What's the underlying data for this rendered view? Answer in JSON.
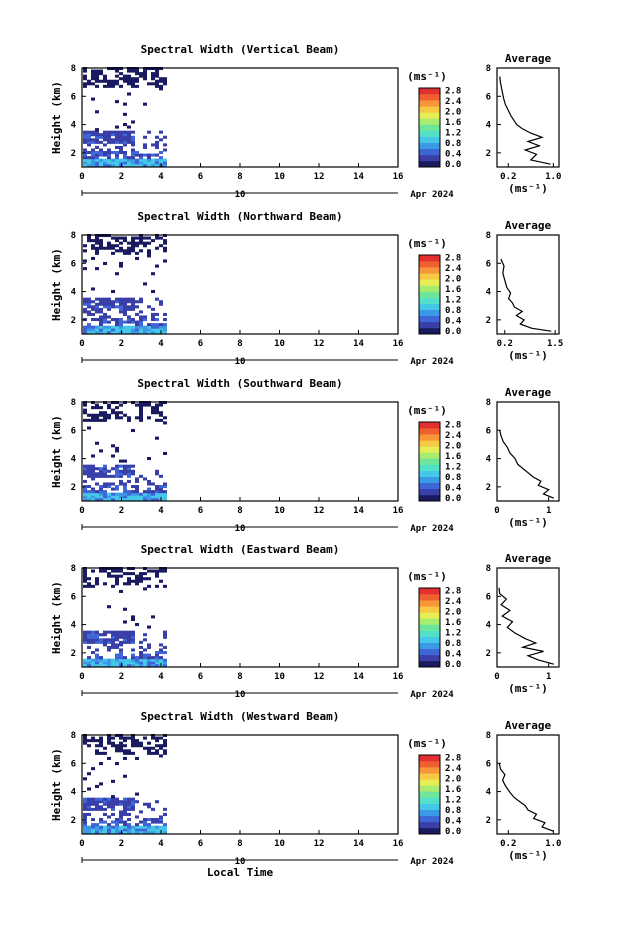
{
  "figure": {
    "xlabel_bottom": "Local Time",
    "date_left": "10",
    "date_right": "Apr 2024",
    "colorbar_unit": "(ms⁻¹)",
    "avg_title": "Average",
    "ylabel": "Height (km)"
  },
  "colorscale": [
    "#1a1a5e",
    "#3a3fa8",
    "#3f66d6",
    "#3a9ae6",
    "#45c7e8",
    "#52e0c8",
    "#6ee69a",
    "#a8ec70",
    "#e7ee55",
    "#f7c844",
    "#f79638",
    "#f0602f",
    "#e23030"
  ],
  "chart_data": [
    {
      "type": "heatmap",
      "title": "Spectral Width (Vertical Beam)",
      "xlabel": "",
      "ylabel": "Height (km)",
      "xlim": [
        0,
        16
      ],
      "ylim": [
        1,
        8
      ],
      "xticks": [
        "0",
        "2",
        "4",
        "6",
        "8",
        "10",
        "12",
        "14",
        "16"
      ],
      "yticks": [
        "2",
        "4",
        "6",
        "8"
      ],
      "colorbar": {
        "range": [
          0,
          2.8
        ],
        "ticks": [
          "0.0",
          "0.4",
          "0.8",
          "1.2",
          "1.6",
          "2.0",
          "2.4",
          "2.8"
        ]
      },
      "data_extent_hours": [
        0,
        4.3
      ],
      "average": {
        "title": "Average",
        "xticks": [
          "0.2",
          "1.0"
        ],
        "xlim": [
          0,
          1.1
        ],
        "ylim": [
          1,
          8
        ],
        "yticks": [
          "2",
          "4",
          "6",
          "8"
        ],
        "profile": [
          [
            0.95,
            1.2
          ],
          [
            0.6,
            1.5
          ],
          [
            0.7,
            1.9
          ],
          [
            0.5,
            2.2
          ],
          [
            0.75,
            2.5
          ],
          [
            0.55,
            2.8
          ],
          [
            0.8,
            3.1
          ],
          [
            0.6,
            3.4
          ],
          [
            0.45,
            3.7
          ],
          [
            0.35,
            4.0
          ],
          [
            0.3,
            4.3
          ],
          [
            0.25,
            4.6
          ],
          [
            0.2,
            5.0
          ],
          [
            0.15,
            5.4
          ],
          [
            0.12,
            5.8
          ],
          [
            0.1,
            6.2
          ],
          [
            0.08,
            6.6
          ],
          [
            0.06,
            7.0
          ],
          [
            0.05,
            7.4
          ]
        ]
      }
    },
    {
      "type": "heatmap",
      "title": "Spectral Width (Northward Beam)",
      "xlabel": "",
      "ylabel": "Height (km)",
      "xlim": [
        0,
        16
      ],
      "ylim": [
        1,
        8
      ],
      "xticks": [
        "0",
        "2",
        "4",
        "6",
        "8",
        "10",
        "12",
        "14",
        "16"
      ],
      "yticks": [
        "2",
        "4",
        "6",
        "8"
      ],
      "colorbar": {
        "range": [
          0,
          2.8
        ],
        "ticks": [
          "0.0",
          "0.4",
          "0.8",
          "1.2",
          "1.6",
          "2.0",
          "2.4",
          "2.8"
        ]
      },
      "data_extent_hours": [
        0,
        4.3
      ],
      "average": {
        "title": "Average",
        "xticks": [
          "0.2",
          "1.5"
        ],
        "xlim": [
          0,
          1.6
        ],
        "ylim": [
          1,
          8
        ],
        "yticks": [
          "2",
          "4",
          "6",
          "8"
        ],
        "profile": [
          [
            1.4,
            1.2
          ],
          [
            0.9,
            1.4
          ],
          [
            0.6,
            1.7
          ],
          [
            0.7,
            2.0
          ],
          [
            0.5,
            2.3
          ],
          [
            0.65,
            2.6
          ],
          [
            0.45,
            2.9
          ],
          [
            0.4,
            3.2
          ],
          [
            0.3,
            3.5
          ],
          [
            0.35,
            3.9
          ],
          [
            0.25,
            4.3
          ],
          [
            0.2,
            4.8
          ],
          [
            0.15,
            5.3
          ],
          [
            0.18,
            5.8
          ],
          [
            0.1,
            6.3
          ]
        ]
      }
    },
    {
      "type": "heatmap",
      "title": "Spectral Width (Southward Beam)",
      "xlabel": "",
      "ylabel": "Height (km)",
      "xlim": [
        0,
        16
      ],
      "ylim": [
        1,
        8
      ],
      "xticks": [
        "0",
        "2",
        "4",
        "6",
        "8",
        "10",
        "12",
        "14",
        "16"
      ],
      "yticks": [
        "2",
        "4",
        "6",
        "8"
      ],
      "colorbar": {
        "range": [
          0,
          2.8
        ],
        "ticks": [
          "0.0",
          "0.4",
          "0.8",
          "1.2",
          "1.6",
          "2.0",
          "2.4",
          "2.8"
        ]
      },
      "data_extent_hours": [
        0,
        4.3
      ],
      "average": {
        "title": "Average",
        "xticks": [
          "0",
          "1"
        ],
        "xlim": [
          0,
          1.2
        ],
        "ylim": [
          1,
          8
        ],
        "yticks": [
          "2",
          "4",
          "6",
          "8"
        ],
        "profile": [
          [
            1.1,
            1.2
          ],
          [
            0.9,
            1.5
          ],
          [
            1.0,
            1.8
          ],
          [
            0.8,
            2.1
          ],
          [
            0.85,
            2.4
          ],
          [
            0.7,
            2.7
          ],
          [
            0.6,
            3.0
          ],
          [
            0.5,
            3.3
          ],
          [
            0.4,
            3.6
          ],
          [
            0.35,
            4.0
          ],
          [
            0.25,
            4.4
          ],
          [
            0.2,
            4.8
          ],
          [
            0.12,
            5.2
          ],
          [
            0.08,
            5.6
          ],
          [
            0.05,
            6.0
          ]
        ]
      }
    },
    {
      "type": "heatmap",
      "title": "Spectral Width (Eastward Beam)",
      "xlabel": "",
      "ylabel": "Height (km)",
      "xlim": [
        0,
        16
      ],
      "ylim": [
        1,
        8
      ],
      "xticks": [
        "0",
        "2",
        "4",
        "6",
        "8",
        "10",
        "12",
        "14",
        "16"
      ],
      "yticks": [
        "2",
        "4",
        "6",
        "8"
      ],
      "colorbar": {
        "range": [
          0,
          2.8
        ],
        "ticks": [
          "0.0",
          "0.4",
          "0.8",
          "1.2",
          "1.6",
          "2.0",
          "2.4",
          "2.8"
        ]
      },
      "data_extent_hours": [
        0,
        4.3
      ],
      "average": {
        "title": "Average",
        "xticks": [
          "0",
          "1"
        ],
        "xlim": [
          0,
          1.2
        ],
        "ylim": [
          1,
          8
        ],
        "yticks": [
          "2",
          "4",
          "6",
          "8"
        ],
        "profile": [
          [
            1.1,
            1.2
          ],
          [
            0.8,
            1.5
          ],
          [
            0.6,
            1.8
          ],
          [
            0.9,
            2.1
          ],
          [
            0.5,
            2.4
          ],
          [
            0.75,
            2.7
          ],
          [
            0.55,
            3.0
          ],
          [
            0.35,
            3.4
          ],
          [
            0.2,
            3.8
          ],
          [
            0.3,
            4.2
          ],
          [
            0.1,
            4.6
          ],
          [
            0.25,
            5.0
          ],
          [
            0.08,
            5.4
          ],
          [
            0.18,
            5.8
          ],
          [
            0.05,
            6.2
          ],
          [
            0.04,
            6.6
          ]
        ]
      }
    },
    {
      "type": "heatmap",
      "title": "Spectral Width (Westward Beam)",
      "xlabel": "Local Time",
      "ylabel": "Height (km)",
      "xlim": [
        0,
        16
      ],
      "ylim": [
        1,
        8
      ],
      "xticks": [
        "0",
        "2",
        "4",
        "6",
        "8",
        "10",
        "12",
        "14",
        "16"
      ],
      "yticks": [
        "2",
        "4",
        "6",
        "8"
      ],
      "colorbar": {
        "range": [
          0,
          2.8
        ],
        "ticks": [
          "0.0",
          "0.4",
          "0.8",
          "1.2",
          "1.6",
          "2.0",
          "2.4",
          "2.8"
        ]
      },
      "data_extent_hours": [
        0,
        4.3
      ],
      "average": {
        "title": "Average",
        "xticks": [
          "0.2",
          "1.0"
        ],
        "xlim": [
          0,
          1.1
        ],
        "ylim": [
          1,
          8
        ],
        "yticks": [
          "2",
          "4",
          "6",
          "8"
        ],
        "profile": [
          [
            1.0,
            1.2
          ],
          [
            0.8,
            1.5
          ],
          [
            0.85,
            1.8
          ],
          [
            0.65,
            2.1
          ],
          [
            0.7,
            2.4
          ],
          [
            0.55,
            2.7
          ],
          [
            0.5,
            3.0
          ],
          [
            0.4,
            3.3
          ],
          [
            0.3,
            3.6
          ],
          [
            0.22,
            4.0
          ],
          [
            0.15,
            4.4
          ],
          [
            0.1,
            4.8
          ],
          [
            0.14,
            5.2
          ],
          [
            0.06,
            5.6
          ],
          [
            0.04,
            6.0
          ]
        ]
      }
    }
  ]
}
